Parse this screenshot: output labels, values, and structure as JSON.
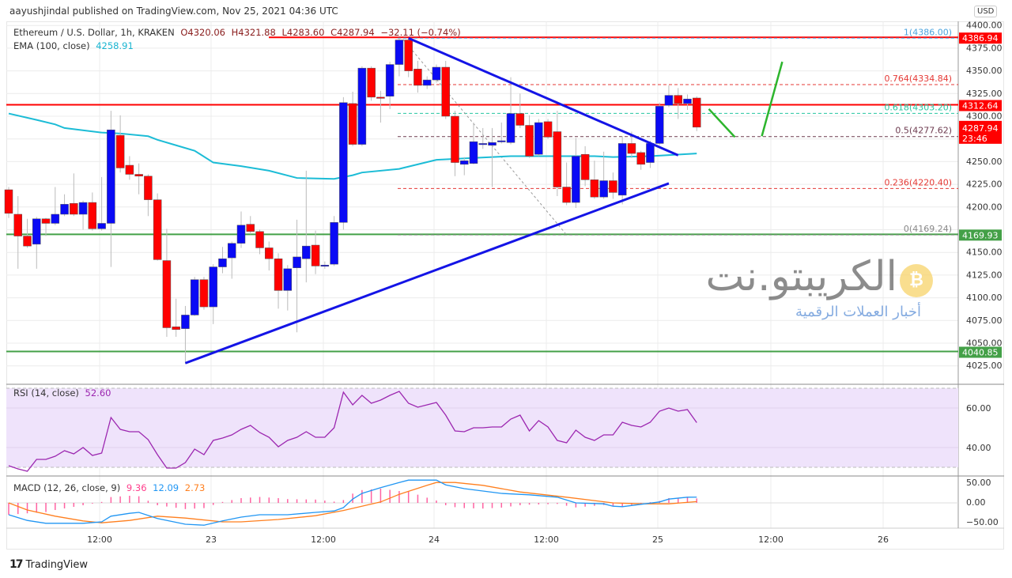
{
  "publish_line": "aayushjindal published on TradingView.com, Nov 25, 2021 04:36 UTC",
  "legend": {
    "symbol": "Ethereum / U.S. Dollar, 1h, KRAKEN",
    "open": "O4320.06",
    "high": "H4321.88",
    "low": "L4283.60",
    "close": "C4287.94",
    "change": "−32.11 (−0.74%)",
    "ema_label": "EMA (100, close)",
    "ema_value": "4258.91",
    "rsi_label": "RSI (14, close)",
    "rsi_value": "52.60",
    "macd_label": "MACD (12, 26, close, 9)",
    "macd_hist": "9.36",
    "macd_value": "12.09",
    "macd_signal": "2.73"
  },
  "currency_badge": "USD",
  "footer_brand": "TradingView",
  "watermark": {
    "title": "الكريبتو.نت",
    "subtitle": "أخبار العملات الرقمية"
  },
  "colors": {
    "up": "#0a0af5",
    "down": "#ff0000",
    "ema": "#1cbcd6",
    "rsi": "#9c27b0",
    "macd": "#2196f3",
    "signal": "#ff7f1e",
    "hist": "#ff3d8b",
    "support": "#43a047",
    "resistance": "#ff0000",
    "trendline": "#1414e6"
  },
  "chart_data": [
    {
      "type": "candlestick",
      "title": "Ethereum / U.S. Dollar, 1h, KRAKEN",
      "interval": "1h",
      "x_tick_labels": [
        "12:00",
        "23",
        "12:00",
        "24",
        "12:00",
        "25",
        "12:00",
        "26"
      ],
      "y_tick_labels": [
        "4400.00",
        "4375.00",
        "4350.00",
        "4325.00",
        "4300.00",
        "4250.00",
        "4225.00",
        "4200.00",
        "4150.00",
        "4125.00",
        "4100.00",
        "4075.00",
        "4050.00",
        "4025.00"
      ],
      "ylim": [
        4010,
        4400
      ],
      "grid": true,
      "candles_ohlc": [
        [
          4219,
          4222,
          4188,
          4193
        ],
        [
          4192,
          4212,
          4132,
          4168
        ],
        [
          4168,
          4187,
          4155,
          4157
        ],
        [
          4159,
          4189,
          4132,
          4187
        ],
        [
          4187,
          4188,
          4168,
          4182
        ],
        [
          4182,
          4222,
          4180,
          4192
        ],
        [
          4192,
          4214,
          4190,
          4203
        ],
        [
          4204,
          4237,
          4190,
          4192
        ],
        [
          4192,
          4207,
          4175,
          4205
        ],
        [
          4205,
          4216,
          4174,
          4176
        ],
        [
          4176,
          4233,
          4174,
          4182
        ],
        [
          4182,
          4306,
          4134,
          4285
        ],
        [
          4279,
          4301,
          4238,
          4243
        ],
        [
          4246,
          4256,
          4230,
          4236
        ],
        [
          4236,
          4248,
          4214,
          4234
        ],
        [
          4234,
          4236,
          4190,
          4208
        ],
        [
          4208,
          4215,
          4141,
          4142
        ],
        [
          4141,
          4176,
          4057,
          4067
        ],
        [
          4068,
          4099,
          4057,
          4065
        ],
        [
          4066,
          4091,
          4027,
          4081
        ],
        [
          4081,
          4123,
          4080,
          4120
        ],
        [
          4120,
          4123,
          4087,
          4090
        ],
        [
          4090,
          4137,
          4071,
          4134
        ],
        [
          4134,
          4156,
          4127,
          4143
        ],
        [
          4144,
          4162,
          4121,
          4160
        ],
        [
          4160,
          4195,
          4155,
          4180
        ],
        [
          4181,
          4190,
          4170,
          4173
        ],
        [
          4173,
          4175,
          4148,
          4155
        ],
        [
          4155,
          4162,
          4130,
          4143
        ],
        [
          4143,
          4149,
          4088,
          4108
        ],
        [
          4108,
          4136,
          4086,
          4132
        ],
        [
          4133,
          4186,
          4062,
          4145
        ],
        [
          4143,
          4240,
          4117,
          4157
        ],
        [
          4158,
          4174,
          4126,
          4135
        ],
        [
          4135,
          4140,
          4132,
          4136
        ],
        [
          4137,
          4190,
          4135,
          4183
        ],
        [
          4183,
          4321,
          4175,
          4315
        ],
        [
          4314,
          4327,
          4267,
          4269
        ],
        [
          4269,
          4355,
          4267,
          4353
        ],
        [
          4353,
          4355,
          4317,
          4321
        ],
        [
          4321,
          4328,
          4293,
          4320
        ],
        [
          4322,
          4360,
          4308,
          4357
        ],
        [
          4357,
          4386,
          4344,
          4384
        ],
        [
          4384,
          4386,
          4343,
          4350
        ],
        [
          4352,
          4361,
          4326,
          4334
        ],
        [
          4334,
          4344,
          4330,
          4340
        ],
        [
          4340,
          4357,
          4337,
          4354
        ],
        [
          4354,
          4361,
          4297,
          4300
        ],
        [
          4300,
          4306,
          4234,
          4249
        ],
        [
          4247,
          4255,
          4235,
          4251
        ],
        [
          4248,
          4293,
          4247,
          4272
        ],
        [
          4270,
          4287,
          4264,
          4270
        ],
        [
          4268,
          4287,
          4222,
          4271
        ],
        [
          4272,
          4293,
          4270,
          4273
        ],
        [
          4271,
          4343,
          4269,
          4303
        ],
        [
          4303,
          4325,
          4287,
          4290
        ],
        [
          4290,
          4301,
          4254,
          4256
        ],
        [
          4258,
          4297,
          4256,
          4293
        ],
        [
          4294,
          4297,
          4275,
          4277
        ],
        [
          4283,
          4306,
          4212,
          4222
        ],
        [
          4222,
          4249,
          4202,
          4205
        ],
        [
          4205,
          4276,
          4199,
          4256
        ],
        [
          4258,
          4267,
          4223,
          4230
        ],
        [
          4230,
          4251,
          4209,
          4211
        ],
        [
          4211,
          4261,
          4209,
          4229
        ],
        [
          4229,
          4238,
          4209,
          4216
        ],
        [
          4213,
          4278,
          4203,
          4270
        ],
        [
          4270,
          4283,
          4254,
          4259
        ],
        [
          4260,
          4262,
          4241,
          4247
        ],
        [
          4249,
          4273,
          4243,
          4270
        ],
        [
          4270,
          4315,
          4268,
          4311
        ],
        [
          4312,
          4334,
          4310,
          4323
        ],
        [
          4323,
          4331,
          4297,
          4314
        ],
        [
          4314,
          4324,
          4307,
          4319
        ],
        [
          4320.06,
          4321.88,
          4283.6,
          4287.94
        ]
      ],
      "ema_100_points": [
        [
          0,
          4303
        ],
        [
          3,
          4296
        ],
        [
          5,
          4291
        ],
        [
          6,
          4287
        ],
        [
          10,
          4282
        ],
        [
          12,
          4281
        ],
        [
          15,
          4278
        ],
        [
          16,
          4274
        ],
        [
          18,
          4268
        ],
        [
          20,
          4262
        ],
        [
          22,
          4249
        ],
        [
          25,
          4245
        ],
        [
          28,
          4240
        ],
        [
          31,
          4232
        ],
        [
          35,
          4231
        ],
        [
          37,
          4235
        ],
        [
          38,
          4238
        ],
        [
          42,
          4242
        ],
        [
          46,
          4252
        ],
        [
          50,
          4254
        ],
        [
          54,
          4256
        ],
        [
          59,
          4256
        ],
        [
          63,
          4256
        ],
        [
          65,
          4255
        ],
        [
          69,
          4256
        ],
        [
          74,
          4258.91
        ]
      ],
      "horizontal_levels": [
        {
          "value": 4386.94,
          "label": "4386.94",
          "color": "resistance"
        },
        {
          "value": 4312.64,
          "label": "4312.64",
          "color": "resistance"
        },
        {
          "value": 4169.93,
          "label": "4169.93",
          "color": "support"
        },
        {
          "value": 4040.85,
          "label": "4040.85",
          "color": "support"
        }
      ],
      "last_price_tag": {
        "value": 4287.94,
        "label": "4287.94",
        "countdown": "23:46"
      },
      "fibonacci": [
        {
          "ratio": "1",
          "value": 4386.0,
          "label": "1(4386.00)",
          "color": "#4ba3de"
        },
        {
          "ratio": "0.764",
          "value": 4334.84,
          "label": "0.764(4334.84)",
          "color": "#e53935"
        },
        {
          "ratio": "0.618",
          "value": 4303.2,
          "label": "0.618(4303.20)",
          "color": "#26c6a0"
        },
        {
          "ratio": "0.5",
          "value": 4277.62,
          "label": "0.5(4277.62)",
          "color": "#6d3b4f"
        },
        {
          "ratio": "0.236",
          "value": 4220.4,
          "label": "0.236(4220.40)",
          "color": "#e53935"
        },
        {
          "ratio": "0",
          "value": 4169.24,
          "label": "0(4169.24)",
          "color": "#888888"
        }
      ],
      "trendlines": [
        {
          "name": "descending",
          "from": [
            43,
            4386
          ],
          "to": [
            72,
            4257
          ]
        },
        {
          "name": "ascending",
          "from": [
            19,
            4028
          ],
          "to": [
            71,
            4226
          ]
        }
      ],
      "projection_arrows": [
        {
          "from": [
            75.3,
            4308
          ],
          "to": [
            78.1,
            4277
          ]
        },
        {
          "from": [
            81,
            4278
          ],
          "to": [
            83.2,
            4360
          ]
        }
      ]
    },
    {
      "type": "line",
      "title": "RSI (14, close)",
      "ylim": [
        30,
        70
      ],
      "y_tick_labels": [
        "60.00",
        "40.00"
      ],
      "band": [
        30,
        70
      ],
      "values": [
        30.8,
        29.2,
        28,
        34,
        34,
        35.6,
        38.4,
        36.8,
        40,
        36,
        37.2,
        55.2,
        49.2,
        48,
        48,
        44,
        36.4,
        29.6,
        29.6,
        32.4,
        39.2,
        36.4,
        43.6,
        44.8,
        46.4,
        49.2,
        51.2,
        47.6,
        45.2,
        40.4,
        43.6,
        45.2,
        48,
        45.2,
        45.2,
        50,
        68,
        61.6,
        66.4,
        62.4,
        64,
        66.4,
        68.4,
        62.4,
        60.4,
        61.6,
        62.8,
        56.4,
        48.4,
        48,
        50,
        50,
        50.4,
        50.4,
        54.4,
        56.4,
        48.4,
        53.6,
        50.4,
        43.6,
        42.4,
        48.8,
        45.2,
        43.6,
        46.4,
        46.4,
        52.8,
        51.2,
        50.4,
        52.8,
        58.4,
        60,
        58.4,
        59.2,
        52.6
      ]
    },
    {
      "type": "line+bar",
      "title": "MACD (12, 26, close, 9)",
      "y_tick_labels": [
        "50.00",
        "0.00",
        "−50.00"
      ],
      "macd_points": [
        [
          0,
          -25
        ],
        [
          2,
          -37
        ],
        [
          4,
          -43
        ],
        [
          8,
          -43
        ],
        [
          10,
          -40
        ],
        [
          11,
          -28
        ],
        [
          13,
          -22
        ],
        [
          14,
          -20
        ],
        [
          16,
          -33
        ],
        [
          19,
          -45
        ],
        [
          21,
          -47
        ],
        [
          23,
          -38
        ],
        [
          25,
          -30
        ],
        [
          27,
          -25
        ],
        [
          30,
          -25
        ],
        [
          33,
          -20
        ],
        [
          35,
          -17
        ],
        [
          36,
          -10
        ],
        [
          37,
          8
        ],
        [
          38,
          20
        ],
        [
          40,
          32
        ],
        [
          42,
          43
        ],
        [
          43,
          48
        ],
        [
          46,
          48
        ],
        [
          47,
          38
        ],
        [
          49,
          30
        ],
        [
          53,
          20
        ],
        [
          56,
          17
        ],
        [
          59,
          12
        ],
        [
          61,
          0
        ],
        [
          64,
          -2
        ],
        [
          65,
          -7
        ],
        [
          66,
          -8
        ],
        [
          68,
          -3
        ],
        [
          70,
          2
        ],
        [
          71,
          8
        ],
        [
          73,
          12
        ],
        [
          74,
          12.09
        ]
      ],
      "signal_points": [
        [
          0,
          0
        ],
        [
          2,
          -15
        ],
        [
          5,
          -28
        ],
        [
          8,
          -38
        ],
        [
          10,
          -42
        ],
        [
          13,
          -37
        ],
        [
          16,
          -28
        ],
        [
          19,
          -32
        ],
        [
          23,
          -40
        ],
        [
          25,
          -40
        ],
        [
          29,
          -35
        ],
        [
          33,
          -27
        ],
        [
          36,
          -16
        ],
        [
          40,
          2
        ],
        [
          42,
          18
        ],
        [
          45,
          37
        ],
        [
          46,
          43
        ],
        [
          48,
          43
        ],
        [
          51,
          37
        ],
        [
          55,
          23
        ],
        [
          60,
          12
        ],
        [
          65,
          0
        ],
        [
          68,
          -2
        ],
        [
          71,
          -2
        ],
        [
          74,
          2.73
        ]
      ]
    }
  ]
}
